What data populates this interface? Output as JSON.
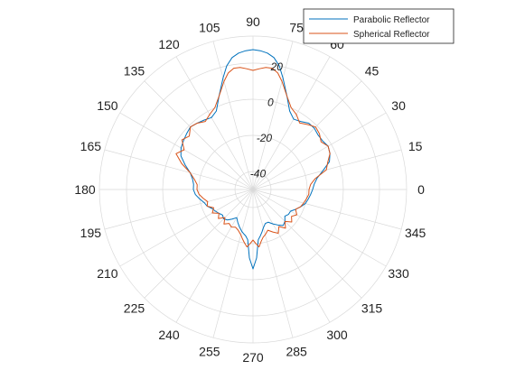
{
  "chart_data": {
    "type": "line",
    "coordinate_system": "polar",
    "title": "",
    "angle_ticks_deg": [
      0,
      15,
      30,
      45,
      60,
      75,
      90,
      105,
      120,
      135,
      150,
      165,
      180,
      195,
      210,
      225,
      240,
      255,
      270,
      285,
      300,
      315,
      330,
      345
    ],
    "angle_tick_labels": [
      "0",
      "15",
      "30",
      "45",
      "60",
      "75",
      "90",
      "105",
      "120",
      "135",
      "150",
      "165",
      "180",
      "195",
      "210",
      "225",
      "240",
      "255",
      "270",
      "285",
      "300",
      "315",
      "330",
      "345"
    ],
    "radial_ticks": [
      -40,
      -20,
      0,
      20
    ],
    "radial_tick_labels": [
      "-40",
      "-20",
      "0",
      "20"
    ],
    "rlim": [
      -50,
      35
    ],
    "grid": true,
    "legend_position": "top-right",
    "theta_deg": [
      0,
      5,
      10,
      15,
      20,
      25,
      30,
      35,
      40,
      45,
      50,
      55,
      60,
      65,
      70,
      75,
      78,
      81,
      84,
      87,
      90,
      93,
      96,
      99,
      102,
      105,
      110,
      115,
      120,
      125,
      130,
      135,
      140,
      145,
      150,
      155,
      160,
      165,
      170,
      175,
      180,
      185,
      190,
      195,
      200,
      205,
      210,
      215,
      220,
      225,
      230,
      235,
      240,
      245,
      250,
      255,
      258,
      261,
      264,
      267,
      270,
      273,
      276,
      279,
      282,
      285,
      290,
      295,
      300,
      305,
      310,
      315,
      320,
      325,
      330,
      335,
      340,
      345,
      350,
      355
    ],
    "series": [
      {
        "name": "Parabolic Reflector",
        "color": "#0072BD",
        "values": [
          -17,
          -16,
          -14,
          -10,
          -5,
          -3,
          -2,
          -3,
          -3,
          -2,
          -2,
          -4,
          -5,
          -2,
          5,
          14,
          20,
          24,
          26,
          27,
          27.5,
          27,
          26,
          24,
          20,
          14,
          5,
          -2,
          -4,
          -3,
          -2,
          -1,
          -2,
          -3,
          -4,
          -6,
          -10,
          -14,
          -16,
          -17,
          -17,
          -18,
          -20,
          -22,
          -23,
          -25,
          -26,
          -27,
          -28,
          -27,
          -28,
          -30,
          -32,
          -30,
          -28,
          -26,
          -25,
          -24,
          -22,
          -12,
          -6,
          -12,
          -22,
          -24,
          -26,
          -28,
          -30,
          -30,
          -28,
          -26,
          -24,
          -25,
          -27,
          -26,
          -26,
          -24,
          -22,
          -20,
          -19,
          -18
        ]
      },
      {
        "name": "Spherical Reflector",
        "color": "#D95319",
        "values": [
          -19,
          -18,
          -15,
          -8,
          -6,
          -3,
          -2,
          -4,
          -2,
          -1,
          -3,
          -5,
          -2,
          0,
          5,
          12,
          16,
          18,
          18,
          17,
          16,
          17,
          18,
          18,
          16,
          12,
          5,
          0,
          -2,
          -4,
          -2,
          -1,
          -4,
          -2,
          -6,
          -3,
          -8,
          -14,
          -17,
          -19,
          -19,
          -20,
          -22,
          -24,
          -23,
          -26,
          -24,
          -27,
          -25,
          -28,
          -25,
          -27,
          -26,
          -27,
          -26,
          -24,
          -22,
          -20,
          -18,
          -20,
          -22,
          -20,
          -18,
          -21,
          -23,
          -24,
          -26,
          -24,
          -22,
          -25,
          -22,
          -25,
          -22,
          -24,
          -22,
          -24,
          -22,
          -21,
          -20,
          -19
        ]
      }
    ]
  }
}
